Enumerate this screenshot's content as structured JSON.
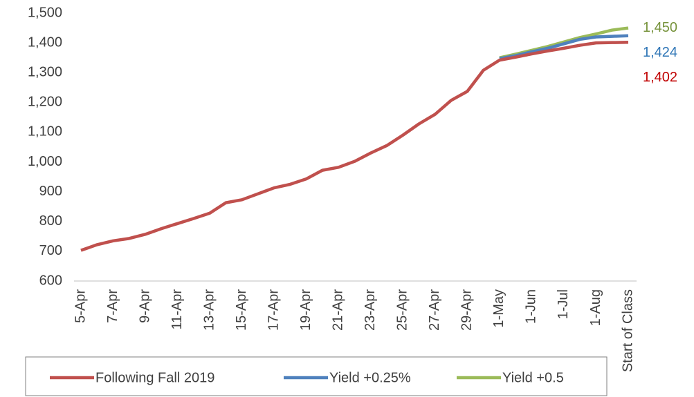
{
  "chart_data": {
    "type": "line",
    "categories": [
      "5-Apr",
      null,
      "7-Apr",
      null,
      "9-Apr",
      null,
      "11-Apr",
      null,
      "13-Apr",
      null,
      "15-Apr",
      null,
      "17-Apr",
      null,
      "19-Apr",
      null,
      "21-Apr",
      null,
      "23-Apr",
      null,
      "25-Apr",
      null,
      "27-Apr",
      null,
      "29-Apr",
      null,
      "1-May",
      null,
      "1-Jun",
      null,
      "1-Jul",
      null,
      "1-Aug",
      null,
      "Start of Class"
    ],
    "series": [
      {
        "name": "Following Fall 2019",
        "color": "#c0504d",
        "label_color": "#c00000",
        "values": [
          703,
          722,
          735,
          743,
          757,
          776,
          793,
          810,
          828,
          863,
          873,
          893,
          913,
          925,
          943,
          972,
          982,
          1002,
          1030,
          1055,
          1090,
          1128,
          1160,
          1207,
          1237,
          1308,
          1342,
          1352,
          1363,
          1373,
          1382,
          1392,
          1400,
          1401,
          1402
        ],
        "value_labels": [
          null,
          null,
          null,
          null,
          null,
          null,
          null,
          null,
          null,
          null,
          null,
          null,
          null,
          null,
          null,
          null,
          null,
          null,
          null,
          null,
          null,
          null,
          null,
          null,
          null,
          null,
          null,
          null,
          null,
          null,
          null,
          null,
          null,
          null,
          "1,402"
        ]
      },
      {
        "name": "Yield +0.25%",
        "color": "#4f81bd",
        "label_color": "#2e75b6",
        "values": [
          null,
          null,
          null,
          null,
          null,
          null,
          null,
          null,
          null,
          null,
          null,
          null,
          null,
          null,
          null,
          null,
          null,
          null,
          null,
          null,
          null,
          null,
          null,
          null,
          null,
          null,
          1347,
          1357,
          1370,
          1382,
          1397,
          1412,
          1420,
          1422,
          1424
        ],
        "value_labels": [
          null,
          null,
          null,
          null,
          null,
          null,
          null,
          null,
          null,
          null,
          null,
          null,
          null,
          null,
          null,
          null,
          null,
          null,
          null,
          null,
          null,
          null,
          null,
          null,
          null,
          null,
          null,
          null,
          null,
          null,
          null,
          null,
          null,
          null,
          "1,424"
        ]
      },
      {
        "name": "Yield +0.5",
        "color": "#9bbb59",
        "label_color": "#77933c",
        "values": [
          null,
          null,
          null,
          null,
          null,
          null,
          null,
          null,
          null,
          null,
          null,
          null,
          null,
          null,
          null,
          null,
          null,
          null,
          null,
          null,
          null,
          null,
          null,
          null,
          null,
          null,
          1350,
          1362,
          1375,
          1388,
          1403,
          1418,
          1430,
          1443,
          1450
        ],
        "value_labels": [
          null,
          null,
          null,
          null,
          null,
          null,
          null,
          null,
          null,
          null,
          null,
          null,
          null,
          null,
          null,
          null,
          null,
          null,
          null,
          null,
          null,
          null,
          null,
          null,
          null,
          null,
          null,
          null,
          null,
          null,
          null,
          null,
          null,
          null,
          "1,450"
        ]
      }
    ],
    "ylim": [
      600,
      1500
    ],
    "yticks": [
      600,
      700,
      800,
      900,
      {
        "value": 1000,
        "label": "1,000"
      },
      {
        "value": 1100,
        "label": "1,100"
      },
      {
        "value": 1200,
        "label": "1,200"
      },
      {
        "value": 1300,
        "label": "1,300"
      },
      {
        "value": 1400,
        "label": "1,400"
      },
      {
        "value": 1500,
        "label": "1,500"
      }
    ],
    "grid": false,
    "legend": "bottom"
  }
}
